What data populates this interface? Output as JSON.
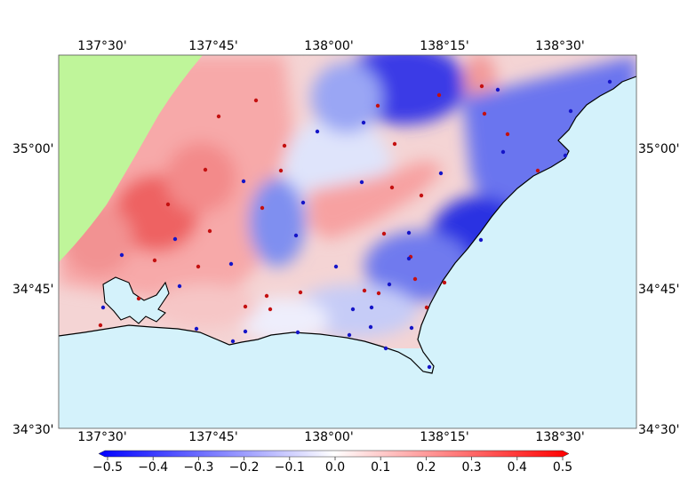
{
  "map": {
    "top_lon_labels": [
      "137°30'",
      "137°45'",
      "138°00'",
      "138°15'",
      "138°30'"
    ],
    "bottom_lon_labels": [
      "137°30'",
      "137°45'",
      "138°00'",
      "138°15'",
      "138°30'"
    ],
    "left_lat_labels": [
      "35°00'",
      "34°45'",
      "34°30'"
    ],
    "right_lat_labels": [
      "35°00'",
      "34°45'",
      "34°30'"
    ],
    "colors": {
      "sea": "#d4f2fb",
      "land_outside": "#bff59a",
      "coastline": "#000000",
      "positive_station": "#c41010",
      "negative_station": "#1515c8"
    }
  },
  "colorbar": {
    "ticks": [
      "−0.5",
      "−0.4",
      "−0.3",
      "−0.2",
      "−0.1",
      "0.0",
      "0.1",
      "0.2",
      "0.3",
      "0.4",
      "0.5"
    ],
    "min": -0.5,
    "max": 0.5,
    "low_color": "#0000ff",
    "mid_color": "#ffffff",
    "high_color": "#ff0000"
  }
}
